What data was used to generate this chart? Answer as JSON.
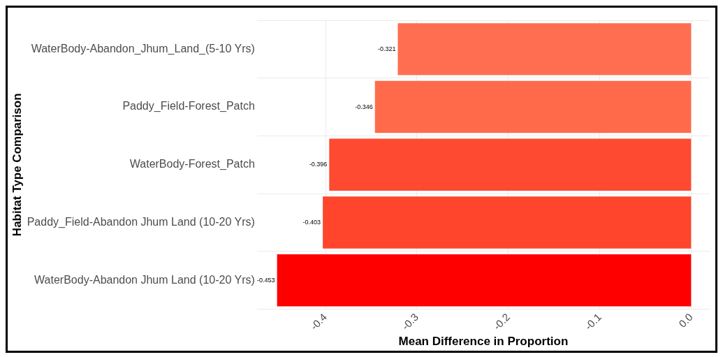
{
  "chart_data": {
    "type": "bar",
    "orientation": "horizontal",
    "xlabel": "Mean Difference in Proportion",
    "ylabel": "Habitat Type Comparison",
    "categories": [
      "WaterBody-Abandon_Jhum_Land_(5-10 Yrs)",
      "Paddy_Field-Forest_Patch",
      "WaterBody-Forest_Patch",
      "Paddy_Field-Abandon Jhum Land (10-20 Yrs)",
      "WaterBody-Abandon Jhum Land (10-20 Yrs)"
    ],
    "values": [
      -0.321,
      -0.346,
      -0.396,
      -0.403,
      -0.453
    ],
    "colors": [
      "#ff6e50",
      "#ff6a4a",
      "#ff4a32",
      "#ff462c",
      "#ff0000"
    ],
    "xlim": [
      -0.475,
      0.02
    ],
    "xticks": [
      -0.4,
      -0.3,
      -0.2,
      -0.1,
      {
        "value": 0,
        "label": "0.0"
      }
    ],
    "grid": true,
    "data_labels": true,
    "legend": false
  }
}
